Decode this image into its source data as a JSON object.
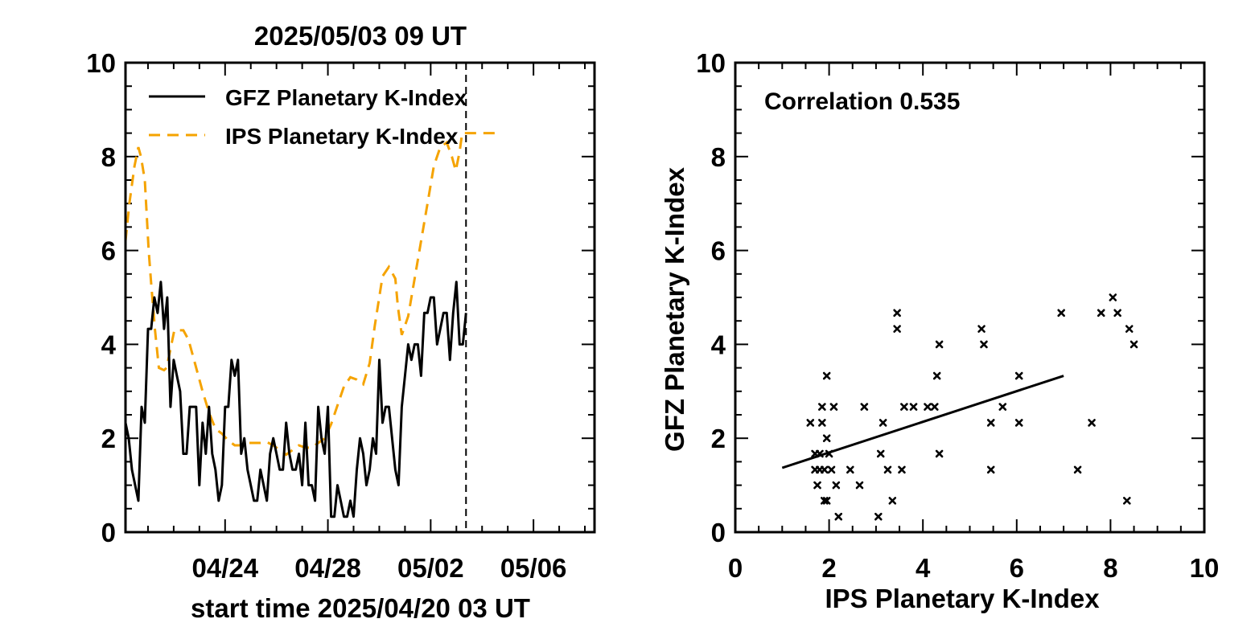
{
  "chart_data": [
    {
      "type": "line",
      "title": "2025/05/03 09 UT",
      "xlabel": "start time 2025/04/20 03 UT",
      "ylabel": "",
      "ylim": [
        0,
        10
      ],
      "xlim_days": [
        0,
        18.25
      ],
      "y_ticks": [
        "0",
        "2",
        "4",
        "6",
        "8",
        "10"
      ],
      "x_ticks": [
        {
          "day": 3.875,
          "label": "04/24"
        },
        {
          "day": 7.875,
          "label": "04/28"
        },
        {
          "day": 11.875,
          "label": "05/02"
        },
        {
          "day": 15.875,
          "label": "05/06"
        }
      ],
      "now_marker_day": 13.25,
      "legend": {
        "position": "top-left",
        "entries": [
          "GFZ Planetary K-Index",
          "IPS Planetary K-Index"
        ]
      },
      "series": [
        {
          "name": "GFZ Planetary K-Index",
          "color": "#000000",
          "style": "solid",
          "x_step_days": 0.125,
          "values": [
            2.33,
            2.0,
            1.33,
            1.0,
            0.67,
            2.67,
            2.33,
            4.33,
            4.33,
            5.0,
            4.67,
            5.33,
            4.33,
            5.0,
            2.67,
            3.67,
            3.33,
            3.0,
            1.67,
            1.67,
            2.67,
            2.67,
            2.67,
            1.0,
            2.33,
            1.67,
            2.67,
            1.67,
            1.33,
            0.67,
            1.0,
            2.67,
            2.67,
            3.67,
            3.33,
            3.67,
            1.67,
            2.0,
            1.33,
            1.0,
            0.67,
            0.67,
            1.33,
            1.0,
            0.67,
            1.67,
            2.0,
            1.67,
            1.33,
            1.33,
            2.33,
            1.67,
            1.33,
            1.33,
            1.67,
            1.0,
            2.33,
            1.0,
            1.0,
            0.67,
            2.67,
            2.0,
            1.67,
            2.67,
            0.33,
            0.33,
            1.0,
            0.67,
            0.33,
            0.33,
            0.67,
            0.33,
            1.33,
            2.0,
            1.67,
            1.0,
            1.33,
            2.0,
            1.67,
            3.67,
            2.33,
            2.67,
            2.67,
            2.0,
            1.33,
            1.0,
            2.67,
            3.33,
            4.0,
            3.67,
            4.0,
            4.0,
            3.33,
            4.67,
            4.67,
            5.0,
            5.0,
            4.0,
            4.33,
            4.67,
            4.67,
            3.67,
            4.67,
            5.33,
            4.0,
            4.0,
            4.67
          ]
        },
        {
          "name": "IPS Planetary K-Index",
          "color": "#f5a300",
          "style": "dashed",
          "points": [
            [
              0,
              6.2
            ],
            [
              0.15,
              7.0
            ],
            [
              0.35,
              7.8
            ],
            [
              0.5,
              8.2
            ],
            [
              0.6,
              8.0
            ],
            [
              0.75,
              7.5
            ],
            [
              0.9,
              6.0
            ],
            [
              1.0,
              5.3
            ],
            [
              1.15,
              4.3
            ],
            [
              1.3,
              3.5
            ],
            [
              1.5,
              3.45
            ],
            [
              1.6,
              3.5
            ],
            [
              1.75,
              3.9
            ],
            [
              1.9,
              4.3
            ],
            [
              2.1,
              4.3
            ],
            [
              2.25,
              4.3
            ],
            [
              2.45,
              4.1
            ],
            [
              2.7,
              3.6
            ],
            [
              3.0,
              3.0
            ],
            [
              3.25,
              2.55
            ],
            [
              3.5,
              2.2
            ],
            [
              3.75,
              2.1
            ],
            [
              4.0,
              1.95
            ],
            [
              4.25,
              1.85
            ],
            [
              4.5,
              1.85
            ],
            [
              4.75,
              1.9
            ],
            [
              5.0,
              1.9
            ],
            [
              5.25,
              1.9
            ],
            [
              5.5,
              1.92
            ],
            [
              5.75,
              1.85
            ],
            [
              6.0,
              1.75
            ],
            [
              6.25,
              1.65
            ],
            [
              6.5,
              1.75
            ],
            [
              6.75,
              1.85
            ],
            [
              7.0,
              1.8
            ],
            [
              7.25,
              1.8
            ],
            [
              7.5,
              1.9
            ],
            [
              7.75,
              2.0
            ],
            [
              8.0,
              2.3
            ],
            [
              8.25,
              2.7
            ],
            [
              8.5,
              3.1
            ],
            [
              8.75,
              3.3
            ],
            [
              9.0,
              3.25
            ],
            [
              9.25,
              3.15
            ],
            [
              9.5,
              3.6
            ],
            [
              9.7,
              4.4
            ],
            [
              9.9,
              5.1
            ],
            [
              10.0,
              5.45
            ],
            [
              10.25,
              5.65
            ],
            [
              10.5,
              5.4
            ],
            [
              10.6,
              4.8
            ],
            [
              10.75,
              4.2
            ],
            [
              11.0,
              4.6
            ],
            [
              11.25,
              5.4
            ],
            [
              11.5,
              6.2
            ],
            [
              11.75,
              7.0
            ],
            [
              12.0,
              7.8
            ],
            [
              12.25,
              8.2
            ],
            [
              12.5,
              8.3
            ],
            [
              12.7,
              8.0
            ],
            [
              12.85,
              7.7
            ],
            [
              13.0,
              8.1
            ],
            [
              13.1,
              8.5
            ],
            [
              13.25,
              8.5
            ],
            [
              14.0,
              8.5
            ],
            [
              14.6,
              8.5
            ]
          ]
        }
      ]
    },
    {
      "type": "scatter",
      "title": "",
      "annotation": "Correlation 0.535",
      "xlabel": "IPS Planetary K-Index",
      "ylabel": "GFZ Planetary K-Index",
      "xlim": [
        0,
        10
      ],
      "ylim": [
        0,
        10
      ],
      "x_ticks": [
        "0",
        "2",
        "4",
        "6",
        "8",
        "10"
      ],
      "y_ticks": [
        "0",
        "2",
        "4",
        "6",
        "8",
        "10"
      ],
      "marker": "x",
      "points": [
        [
          1.6,
          2.33
        ],
        [
          1.7,
          1.67
        ],
        [
          1.7,
          1.33
        ],
        [
          1.75,
          1.0
        ],
        [
          1.8,
          1.33
        ],
        [
          1.8,
          1.67
        ],
        [
          1.85,
          2.33
        ],
        [
          1.85,
          2.67
        ],
        [
          1.9,
          1.33
        ],
        [
          1.9,
          0.67
        ],
        [
          1.95,
          3.33
        ],
        [
          1.95,
          2.0
        ],
        [
          1.95,
          0.67
        ],
        [
          2.0,
          1.67
        ],
        [
          2.05,
          1.33
        ],
        [
          2.1,
          2.67
        ],
        [
          2.15,
          1.0
        ],
        [
          2.2,
          0.33
        ],
        [
          2.45,
          1.33
        ],
        [
          2.65,
          1.0
        ],
        [
          2.75,
          2.67
        ],
        [
          3.05,
          0.33
        ],
        [
          3.1,
          1.67
        ],
        [
          3.15,
          2.33
        ],
        [
          3.25,
          1.33
        ],
        [
          3.35,
          0.67
        ],
        [
          3.45,
          4.67
        ],
        [
          3.45,
          4.33
        ],
        [
          3.55,
          1.33
        ],
        [
          3.6,
          2.67
        ],
        [
          3.8,
          2.67
        ],
        [
          4.1,
          2.67
        ],
        [
          4.25,
          2.67
        ],
        [
          4.3,
          3.33
        ],
        [
          4.35,
          4.0
        ],
        [
          4.35,
          1.67
        ],
        [
          5.25,
          4.33
        ],
        [
          5.3,
          4.0
        ],
        [
          5.45,
          2.33
        ],
        [
          5.45,
          1.33
        ],
        [
          5.7,
          2.67
        ],
        [
          6.05,
          3.33
        ],
        [
          6.05,
          2.33
        ],
        [
          6.95,
          4.67
        ],
        [
          7.3,
          1.33
        ],
        [
          7.6,
          2.33
        ],
        [
          7.8,
          4.67
        ],
        [
          8.05,
          5.0
        ],
        [
          8.15,
          4.67
        ],
        [
          8.35,
          0.67
        ],
        [
          8.4,
          4.33
        ],
        [
          8.5,
          4.0
        ]
      ],
      "fit_line": [
        [
          1.0,
          1.37
        ],
        [
          7.0,
          3.33
        ]
      ]
    }
  ]
}
